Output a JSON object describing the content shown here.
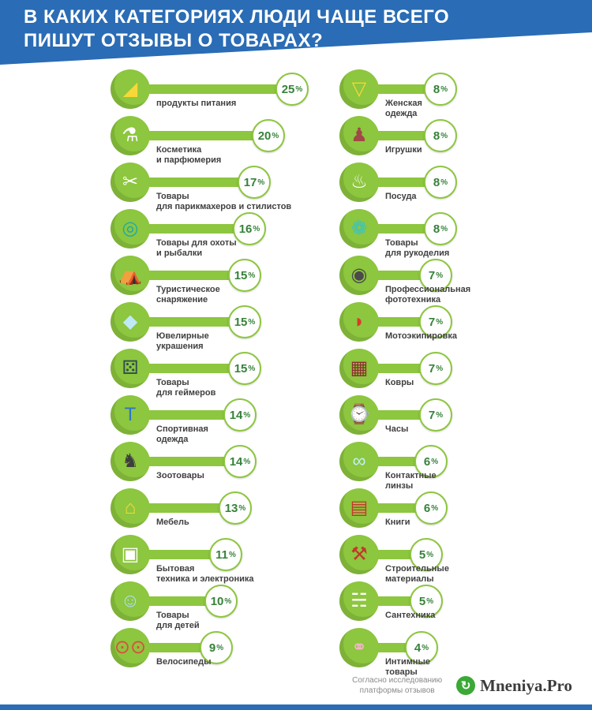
{
  "header": {
    "title_line1": "В КАКИХ КАТЕГОРИЯХ ЛЮДИ ЧАЩЕ ВСЕГО",
    "title_line2": "ПИШУТ ОТЗЫВЫ О ТОВАРАХ?",
    "bg_color": "#2a6cb5"
  },
  "chart_data": {
    "type": "bar",
    "orientation": "horizontal",
    "title": "В каких категориях люди чаще всего пишут отзывы о товарах?",
    "unit": "%",
    "bar_color": "#8dc63f",
    "value_range": [
      0,
      25
    ],
    "columns": [
      {
        "items": [
          {
            "label": [
              "продукты питания"
            ],
            "value": 25,
            "icon": "cheese-icon",
            "glyph": "◢",
            "glyph_color": "#f8d839"
          },
          {
            "label": [
              "Косметика",
              "и парфюмерия"
            ],
            "value": 20,
            "icon": "perfume-icon",
            "glyph": "⚗",
            "glyph_color": "#ffffff"
          },
          {
            "label": [
              "Товары",
              "для парикмахеров и стилистов"
            ],
            "value": 17,
            "icon": "scissors-icon",
            "glyph": "✂",
            "glyph_color": "#ffffff"
          },
          {
            "label": [
              "Товары для охоты",
              "и рыбалки"
            ],
            "value": 16,
            "icon": "target-icon",
            "glyph": "◎",
            "glyph_color": "#1ca9a9"
          },
          {
            "label": [
              "Туристическое",
              "снаряжение"
            ],
            "value": 15,
            "icon": "backpack-icon",
            "glyph": "⛺",
            "glyph_color": "#116e5a"
          },
          {
            "label": [
              "Ювелирные",
              "украшения"
            ],
            "value": 15,
            "icon": "diamond-icon",
            "glyph": "◆",
            "glyph_color": "#bfe9f7"
          },
          {
            "label": [
              "Товары",
              "для геймеров"
            ],
            "value": 15,
            "icon": "gamepad-icon",
            "glyph": "⚄",
            "glyph_color": "#2f4f4f"
          },
          {
            "label": [
              "Спортивная",
              "одежда"
            ],
            "value": 14,
            "icon": "tshirt-icon",
            "glyph": "T",
            "glyph_color": "#2e75c8"
          },
          {
            "label": [
              "Зоотовары"
            ],
            "value": 14,
            "icon": "cat-icon",
            "glyph": "♞",
            "glyph_color": "#3d3d3d"
          },
          {
            "label": [
              "Мебель"
            ],
            "value": 13,
            "icon": "sofa-icon",
            "glyph": "⌂",
            "glyph_color": "#f8d839"
          },
          {
            "label": [
              "Бытовая",
              "техника и электроника"
            ],
            "value": 11,
            "icon": "washing-machine-icon",
            "glyph": "▣",
            "glyph_color": "#ffffff"
          },
          {
            "label": [
              "Товары",
              "для детей"
            ],
            "value": 10,
            "icon": "baby-icon",
            "glyph": "☺",
            "glyph_color": "#aee1f2"
          },
          {
            "label": [
              "Велосипеды"
            ],
            "value": 9,
            "icon": "bicycle-icon",
            "glyph": "⊙⊙",
            "glyph_color": "#d94f3d"
          }
        ]
      },
      {
        "items": [
          {
            "label": [
              "Женская",
              "одежда"
            ],
            "value": 8,
            "icon": "dress-icon",
            "glyph": "▽",
            "glyph_color": "#f8d839"
          },
          {
            "label": [
              "Игрушки"
            ],
            "value": 8,
            "icon": "teddy-bear-icon",
            "glyph": "♟",
            "glyph_color": "#a14848"
          },
          {
            "label": [
              "Посуда"
            ],
            "value": 8,
            "icon": "cooking-pot-icon",
            "glyph": "♨",
            "glyph_color": "#ffffff"
          },
          {
            "label": [
              "Товары",
              "для рукоделия"
            ],
            "value": 8,
            "icon": "origami-icon",
            "glyph": "❁",
            "glyph_color": "#35c4c8"
          },
          {
            "label": [
              "Профессиональная",
              "фототехника"
            ],
            "value": 7,
            "icon": "camera-icon",
            "glyph": "◉",
            "glyph_color": "#4a4a4a"
          },
          {
            "label": [
              "Мотоэкипировка"
            ],
            "value": 7,
            "icon": "helmet-icon",
            "glyph": "◗",
            "glyph_color": "#d93a2b"
          },
          {
            "label": [
              "Ковры"
            ],
            "value": 7,
            "icon": "carpet-icon",
            "glyph": "▦",
            "glyph_color": "#8c2f2f"
          },
          {
            "label": [
              "Часы"
            ],
            "value": 7,
            "icon": "watch-icon",
            "glyph": "⌚",
            "glyph_color": "#ffffff"
          },
          {
            "label": [
              "Контактные",
              "линзы"
            ],
            "value": 6,
            "icon": "contact-lenses-icon",
            "glyph": "∞",
            "glyph_color": "#bff0f4"
          },
          {
            "label": [
              "Книги"
            ],
            "value": 6,
            "icon": "books-icon",
            "glyph": "▤",
            "glyph_color": "#c0392b"
          },
          {
            "label": [
              "Строительные",
              "материалы"
            ],
            "value": 5,
            "icon": "bricks-icon",
            "glyph": "⚒",
            "glyph_color": "#c0392b"
          },
          {
            "label": [
              "Сантехника"
            ],
            "value": 5,
            "icon": "toilet-icon",
            "glyph": "☵",
            "glyph_color": "#ffffff"
          },
          {
            "label": [
              "Интимные",
              "товары"
            ],
            "value": 4,
            "icon": "handcuffs-icon",
            "glyph": "⚭",
            "glyph_color": "#f3b6c8"
          }
        ]
      }
    ]
  },
  "footer": {
    "source_line1": "Согласно исследованию",
    "source_line2": "платформы отзывов",
    "brand": "Mneniya.Pro",
    "brand_icon_color": "#3aa935"
  }
}
